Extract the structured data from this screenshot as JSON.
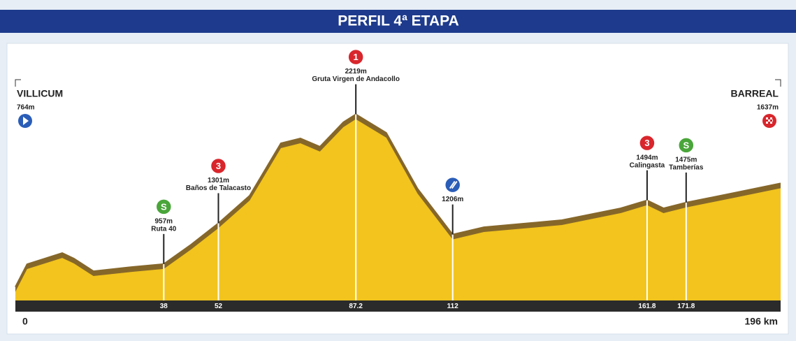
{
  "header": {
    "title": "PERFIL 4ª ETAPA"
  },
  "chart_data": {
    "type": "area",
    "xlim": [
      0,
      196
    ],
    "ylim": [
      650,
      2750
    ],
    "x": [
      0,
      3,
      12,
      15,
      20,
      30,
      38,
      45,
      52,
      60,
      68,
      73,
      78,
      84,
      87.2,
      95,
      103,
      112,
      120,
      140,
      155,
      161.8,
      166,
      171.8,
      185,
      196
    ],
    "values": [
      764,
      956,
      1050,
      1003,
      897,
      933,
      957,
      1121,
      1301,
      1533,
      1975,
      2016,
      1946,
      2152,
      2219,
      2063,
      1592,
      1206,
      1268,
      1327,
      1427,
      1494,
      1427,
      1475,
      1563,
      1637
    ],
    "color": "#f2c41d",
    "shade_color": "#86672a",
    "xticks": [
      38,
      52,
      87.2,
      112,
      161.8,
      171.8
    ],
    "x_end_labels": [
      0,
      {
        "value": 196,
        "label": "196 km"
      }
    ],
    "start": {
      "name": "VILLICUM",
      "elev_label": "764m"
    },
    "finish": {
      "name": "BARREAL",
      "elev_label": "1637m"
    },
    "points": [
      {
        "badge": "S",
        "color": "#4aa53a",
        "x": 38,
        "value": 957,
        "value_label": "957m",
        "name": "Ruta 40"
      },
      {
        "badge": "3",
        "color": "#d8262c",
        "x": 52,
        "value": 1301,
        "value_label": "1301m",
        "name": "Baños de Talacasto"
      },
      {
        "badge": "1",
        "color": "#d8262c",
        "x": 87.2,
        "value": 2219,
        "value_label": "2219m",
        "name": "Gruta Virgen de Andacollo"
      },
      {
        "color": "#2a5db8",
        "x": 112,
        "value": 1206,
        "value_label": "1206m"
      },
      {
        "badge": "3",
        "color": "#d8262c",
        "x": 161.8,
        "value": 1494,
        "value_label": "1494m",
        "name": "Calingasta"
      },
      {
        "badge": "S",
        "color": "#4aa53a",
        "x": 171.8,
        "value": 1475,
        "value_label": "1475m",
        "name": "Tamberías"
      }
    ]
  }
}
